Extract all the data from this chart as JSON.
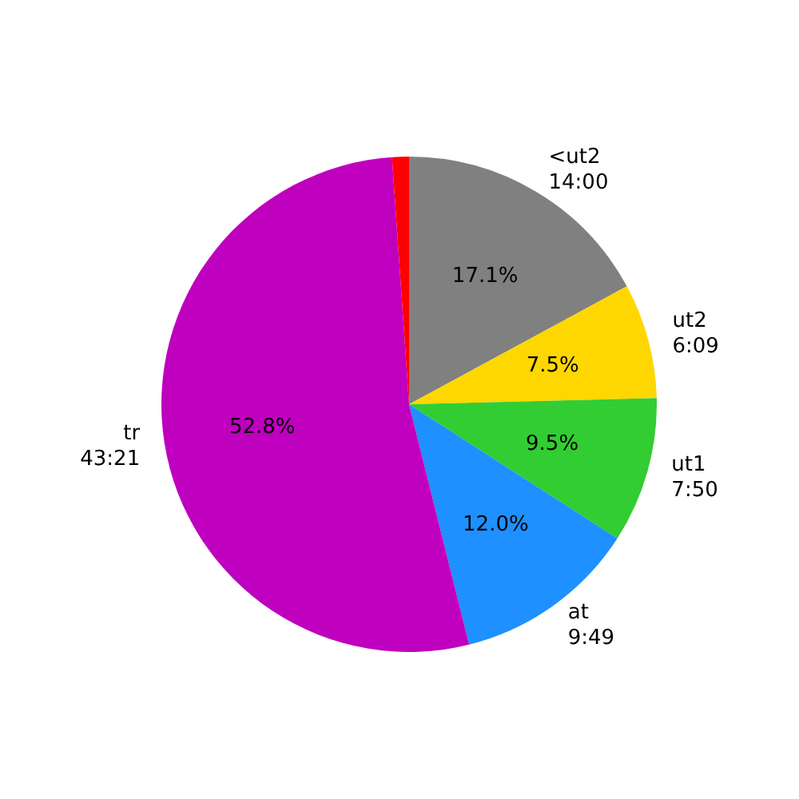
{
  "chart_data": {
    "type": "pie",
    "categories": [
      "<ut2\n14:00",
      "ut2\n6:09",
      "ut1\n7:50",
      "at\n9:49",
      "tr\n43:21",
      null
    ],
    "values": [
      17.1,
      7.5,
      9.5,
      12.0,
      52.8,
      1.1
    ],
    "colors": [
      "#808080",
      "#ffd700",
      "#32cd32",
      "#1e90ff",
      "#bf00bf",
      "#ff0000"
    ],
    "value_labels": [
      "17.1%",
      "7.5%",
      "9.5%",
      "12.0%",
      "52.8%",
      null
    ],
    "legend": false
  }
}
